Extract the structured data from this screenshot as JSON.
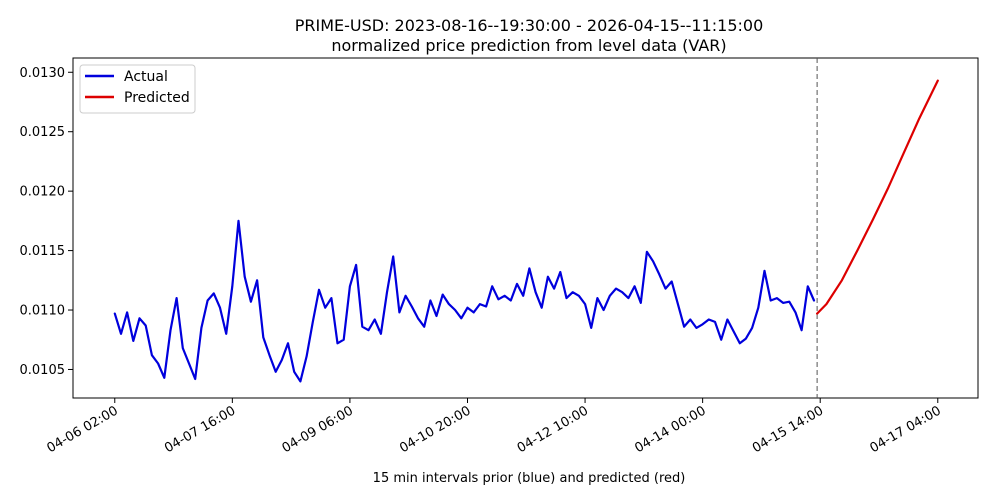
{
  "chart_data": {
    "type": "line",
    "title": "PRIME-USD: 2023-08-16--19:30:00 - 2026-04-15--11:15:00",
    "subtitle": "normalized price prediction from level data (VAR)",
    "xlabel": "15 min intervals prior (blue) and predicted (red)",
    "ylabel": "",
    "x_tick_labels": [
      "04-06 02:00",
      "04-07 16:00",
      "04-09 06:00",
      "04-10 20:00",
      "04-12 10:00",
      "04-14 00:00",
      "04-15 14:00",
      "04-17 04:00"
    ],
    "x_tick_values": [
      0,
      38,
      76,
      114,
      152,
      190,
      228,
      266
    ],
    "xlim": [
      -13.5,
      279
    ],
    "ylim": [
      0.01026,
      0.01312
    ],
    "y_ticks": [
      0.0105,
      0.011,
      0.0115,
      0.012,
      0.0125,
      0.013
    ],
    "y_tick_labels": [
      "0.0105",
      "0.0110",
      "0.0115",
      "0.0120",
      "0.0125",
      "0.0130"
    ],
    "prediction_start_x": 227,
    "grid": false,
    "legend_position": "top-left",
    "series": [
      {
        "name": "Actual",
        "color": "#0000dd",
        "x": [
          0,
          2,
          4,
          6,
          8,
          10,
          12,
          14,
          16,
          18,
          20,
          22,
          24,
          26,
          28,
          30,
          32,
          34,
          36,
          38,
          40,
          42,
          44,
          46,
          48,
          50,
          52,
          54,
          56,
          58,
          60,
          62,
          64,
          66,
          68,
          70,
          72,
          74,
          76,
          78,
          80,
          82,
          84,
          86,
          88,
          90,
          92,
          94,
          96,
          98,
          100,
          102,
          104,
          106,
          108,
          110,
          112,
          114,
          116,
          118,
          120,
          122,
          124,
          126,
          128,
          130,
          132,
          134,
          136,
          138,
          140,
          142,
          144,
          146,
          148,
          150,
          152,
          154,
          156,
          158,
          160,
          162,
          164,
          166,
          168,
          170,
          172,
          174,
          176,
          178,
          180,
          182,
          184,
          186,
          188,
          190,
          192,
          194,
          196,
          198,
          200,
          202,
          204,
          206,
          208,
          210,
          212,
          214,
          216,
          218,
          220,
          222,
          224,
          226
        ],
        "values": [
          0.01097,
          0.0108,
          0.01098,
          0.01074,
          0.01093,
          0.01087,
          0.01062,
          0.01055,
          0.01043,
          0.01083,
          0.0111,
          0.01068,
          0.01055,
          0.01042,
          0.01085,
          0.01108,
          0.01114,
          0.01102,
          0.0108,
          0.0112,
          0.01175,
          0.01128,
          0.01107,
          0.01125,
          0.01077,
          0.01062,
          0.01048,
          0.01058,
          0.01072,
          0.01048,
          0.0104,
          0.01061,
          0.0109,
          0.01117,
          0.01102,
          0.0111,
          0.01072,
          0.01075,
          0.0112,
          0.01138,
          0.01086,
          0.01083,
          0.01092,
          0.0108,
          0.01115,
          0.01145,
          0.01098,
          0.01112,
          0.01103,
          0.01093,
          0.01086,
          0.01108,
          0.01095,
          0.01113,
          0.01105,
          0.011,
          0.01093,
          0.01102,
          0.01098,
          0.01105,
          0.01103,
          0.0112,
          0.01109,
          0.01112,
          0.01108,
          0.01122,
          0.01112,
          0.01135,
          0.01115,
          0.01102,
          0.01128,
          0.01118,
          0.01132,
          0.0111,
          0.01115,
          0.01112,
          0.01105,
          0.01085,
          0.0111,
          0.011,
          0.01112,
          0.01118,
          0.01115,
          0.0111,
          0.0112,
          0.01106,
          0.01149,
          0.01141,
          0.0113,
          0.01118,
          0.01124,
          0.01105,
          0.01086,
          0.01092,
          0.01085,
          0.01088,
          0.01092,
          0.0109,
          0.01075,
          0.01092,
          0.01082,
          0.01072,
          0.01076,
          0.01085,
          0.01102,
          0.01133,
          0.01108,
          0.0111,
          0.01106,
          0.01107,
          0.01098,
          0.01083,
          0.0112,
          0.01108
        ]
      },
      {
        "name": "Predicted",
        "color": "#dd0000",
        "x": [
          227,
          230,
          235,
          240,
          245,
          250,
          255,
          260,
          266
        ],
        "values": [
          0.01097,
          0.01105,
          0.01125,
          0.0115,
          0.01176,
          0.01203,
          0.01232,
          0.01261,
          0.01293
        ]
      }
    ]
  }
}
